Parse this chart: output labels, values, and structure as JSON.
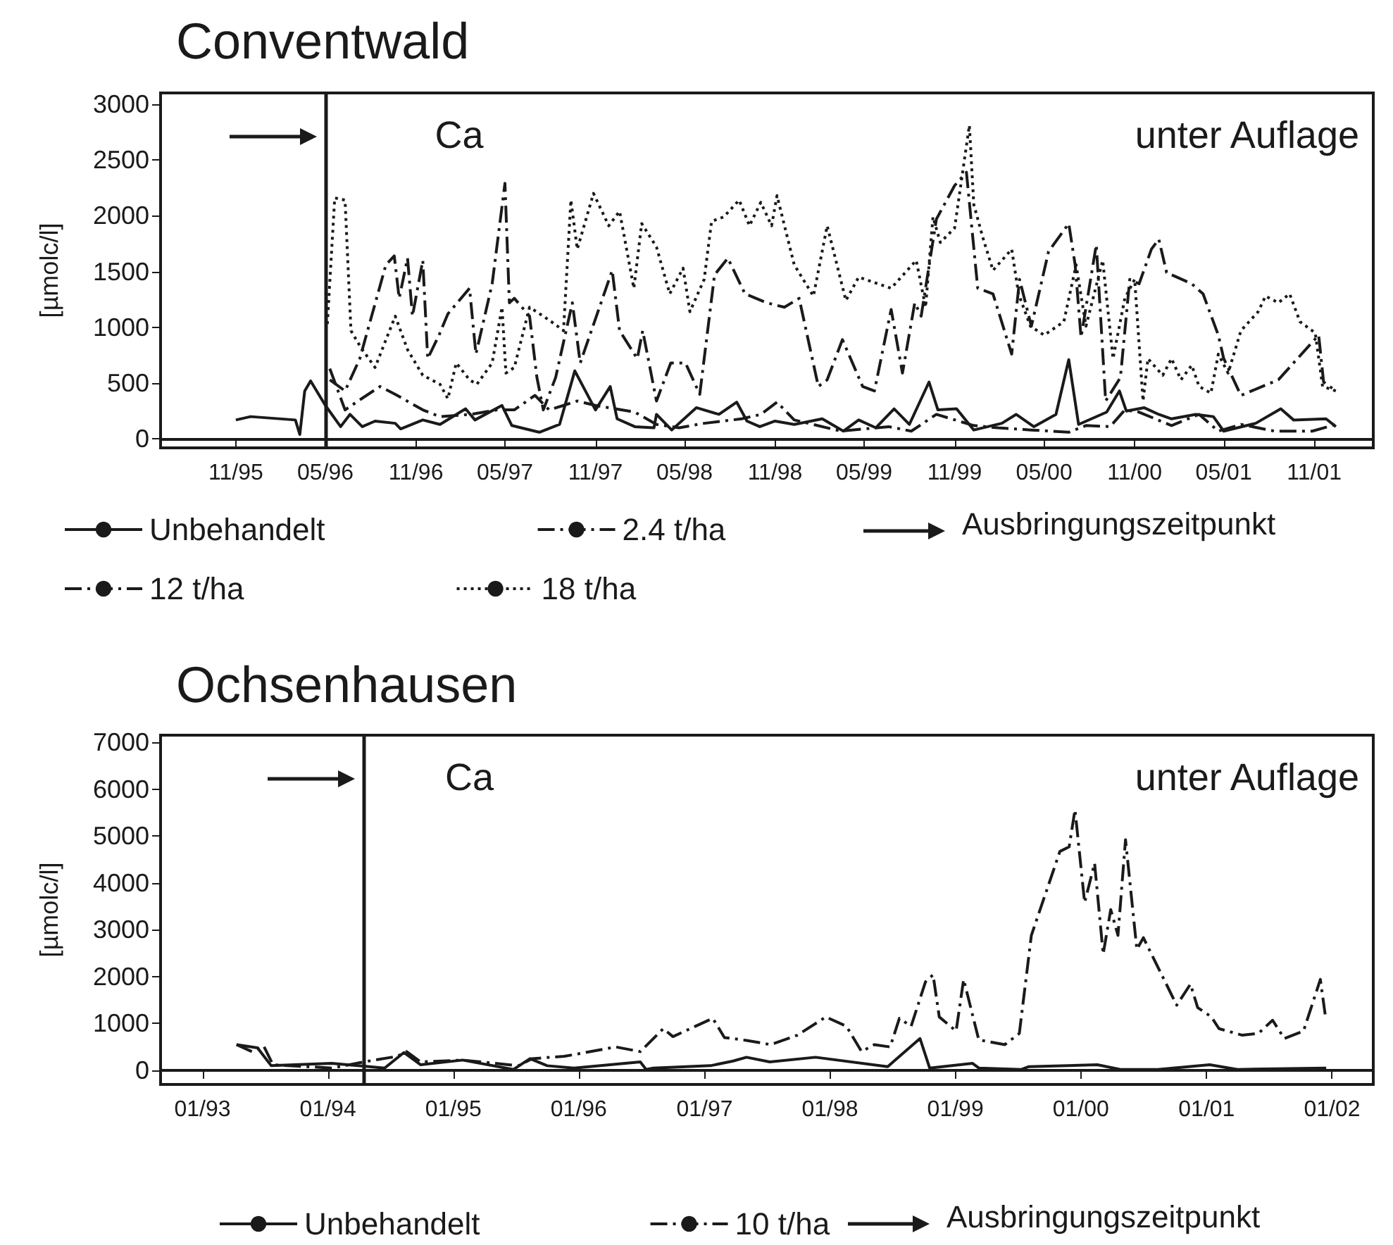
{
  "chart_data": [
    {
      "type": "line",
      "title": "Conventwald",
      "ylabel": "[µmolc/l]",
      "annotations": [
        "Ca",
        "unter Auflage"
      ],
      "legend": "bottom",
      "xlim": [
        "1995-06",
        "2002-03"
      ],
      "ylim": [
        -80,
        3100
      ],
      "yticks": [
        0,
        500,
        1000,
        1500,
        2000,
        2500,
        3000
      ],
      "xticks": [
        {
          "value": "1995-11",
          "label": "11/95"
        },
        {
          "value": "1996-05",
          "label": "05/96"
        },
        {
          "value": "1996-11",
          "label": "11/96"
        },
        {
          "value": "1997-05",
          "label": "05/97"
        },
        {
          "value": "1997-11",
          "label": "11/97"
        },
        {
          "value": "1998-05",
          "label": "05/98"
        },
        {
          "value": "1998-11",
          "label": "11/98"
        },
        {
          "value": "1999-05",
          "label": "05/99"
        },
        {
          "value": "1999-11",
          "label": "11/99"
        },
        {
          "value": "2000-05",
          "label": "05/00"
        },
        {
          "value": "2000-11",
          "label": "11/00"
        },
        {
          "value": "2001-05",
          "label": "05/01"
        },
        {
          "value": "2001-11",
          "label": "11/01"
        }
      ],
      "ref_lines": [
        {
          "axis": "x",
          "value": "1996-05",
          "label": "Ausbringungszeitpunkt",
          "color": "#1a1a1a"
        }
      ],
      "series": [
        {
          "name": "Unbehandelt",
          "color": "#1a1a1a",
          "line_style": "solid",
          "x": [
            "1995-11-01",
            "1995-12-01",
            "1996-03-01",
            "1996-03-10",
            "1996-03-20",
            "1996-04-01",
            "1996-05-01",
            "1996-06-01",
            "1996-06-20",
            "1996-07-15",
            "1996-08-10",
            "1996-09-20",
            "1996-10-01",
            "1996-11-15",
            "1996-12-20",
            "1997-02-10",
            "1997-03-01",
            "1997-04-25",
            "1997-05-15",
            "1997-07-10",
            "1997-08-20",
            "1997-09-20",
            "1997-11-01",
            "1997-12-01",
            "1997-12-15",
            "1998-01-20",
            "1998-02-28",
            "1998-03-05",
            "1998-04-05",
            "1998-05-25",
            "1998-07-10",
            "1998-08-15",
            "1998-09-05",
            "1998-10-01",
            "1998-11-01",
            "1998-12-10",
            "1999-02-05",
            "1999-03-20",
            "1999-04-20",
            "1999-05-25",
            "1999-07-01",
            "1999-08-01",
            "1999-09-10",
            "1999-09-28",
            "1999-11-05",
            "1999-12-10",
            "2000-02-05",
            "2000-03-05",
            "2000-04-10",
            "2000-05-25",
            "2000-06-20",
            "2000-07-10",
            "2000-09-05",
            "2000-10-01",
            "2000-10-15",
            "2000-11-20",
            "2000-12-20",
            "2001-01-15",
            "2001-03-05",
            "2001-04-10",
            "2001-05-01",
            "2001-07-05",
            "2001-08-25",
            "2001-09-20",
            "2001-11-25",
            "2001-12-15"
          ],
          "values": [
            170,
            200,
            170,
            40,
            430,
            520,
            300,
            110,
            220,
            110,
            160,
            140,
            90,
            170,
            130,
            270,
            170,
            300,
            120,
            60,
            130,
            610,
            260,
            470,
            180,
            110,
            100,
            220,
            80,
            280,
            220,
            330,
            160,
            110,
            160,
            130,
            180,
            70,
            170,
            100,
            270,
            130,
            510,
            260,
            270,
            80,
            140,
            220,
            110,
            220,
            710,
            130,
            240,
            430,
            250,
            280,
            220,
            180,
            220,
            200,
            70,
            140,
            270,
            170,
            180,
            110
          ]
        },
        {
          "name": "2.4 t/ha",
          "color": "#1a1a1a",
          "line_style": "dashed",
          "x": [
            "1996-05-10",
            "1996-06-10",
            "1996-07-10",
            "1996-08-20",
            "1996-09-20",
            "1996-11-15",
            "1996-12-20",
            "1997-02-20",
            "1997-04-15",
            "1997-05-20",
            "1997-07-01",
            "1997-07-30",
            "1997-08-28",
            "1997-09-25",
            "1997-11-01",
            "1998-01-20",
            "1998-03-05",
            "1998-04-20",
            "1998-06-10",
            "1998-08-25",
            "1998-10-03",
            "1998-11-05",
            "1998-12-10",
            "1999-03-15",
            "1999-06-20",
            "1999-08-05",
            "1999-09-25",
            "1999-12-10",
            "2000-01-28",
            "2000-04-05",
            "2000-06-20",
            "2000-07-25",
            "2000-09-12",
            "2000-10-12",
            "2000-11-10",
            "2001-01-15",
            "2001-03-12",
            "2001-04-20",
            "2001-06-05",
            "2001-08-12",
            "2001-10-28",
            "2001-12-15"
          ],
          "values": [
            630,
            260,
            350,
            470,
            400,
            260,
            200,
            220,
            260,
            260,
            390,
            260,
            300,
            340,
            300,
            240,
            130,
            100,
            140,
            180,
            220,
            330,
            170,
            70,
            110,
            70,
            220,
            120,
            100,
            80,
            60,
            120,
            110,
            260,
            240,
            120,
            220,
            70,
            130,
            70,
            70,
            130
          ]
        },
        {
          "name": "12 t/ha",
          "color": "#1a1a1a",
          "line_style": "dashed",
          "x": [
            "1996-05-10",
            "1996-06-10",
            "1996-07-10",
            "1996-09-01",
            "1996-09-18",
            "1996-09-28",
            "1996-10-15",
            "1996-10-25",
            "1996-11-15",
            "1996-11-25",
            "1996-12-18",
            "1997-01-05",
            "1997-02-18",
            "1997-03-03",
            "1997-04-05",
            "1997-05-01",
            "1997-05-10",
            "1997-05-20",
            "1997-06-20",
            "1997-07-05",
            "1997-07-18",
            "1997-08-12",
            "1997-09-15",
            "1997-10-01",
            "1997-12-05",
            "1997-12-20",
            "1998-01-25",
            "1998-02-05",
            "1998-03-05",
            "1998-04-03",
            "1998-05-03",
            "1998-06-01",
            "1998-07-01",
            "1998-07-28",
            "1998-09-01",
            "1998-10-15",
            "1998-11-20",
            "1998-12-20",
            "1999-01-28",
            "1999-02-15",
            "1999-03-18",
            "1999-04-28",
            "1999-05-22",
            "1999-06-25",
            "1999-07-18",
            "1999-08-12",
            "1999-08-25",
            "1999-09-25",
            "1999-11-01",
            "1999-11-25",
            "1999-12-18",
            "2000-01-18",
            "2000-02-25",
            "2000-03-12",
            "2000-04-05",
            "2000-05-10",
            "2000-06-20",
            "2000-07-03",
            "2000-07-15",
            "2000-08-15",
            "2000-09-03",
            "2000-10-03",
            "2000-10-22",
            "2000-11-10",
            "2000-12-05",
            "2000-12-20",
            "2001-01-05",
            "2001-02-25",
            "2001-03-20",
            "2001-04-20",
            "2001-05-01",
            "2001-06-05",
            "2001-08-20",
            "2001-11-10",
            "2001-11-20",
            "2001-12-15"
          ],
          "values": [
            530,
            430,
            720,
            1560,
            1640,
            1260,
            1620,
            1100,
            1600,
            720,
            930,
            1120,
            1350,
            760,
            1390,
            2290,
            1220,
            1260,
            1100,
            550,
            260,
            550,
            1220,
            680,
            1510,
            970,
            720,
            970,
            340,
            680,
            680,
            400,
            1470,
            1620,
            1300,
            1220,
            1180,
            1260,
            470,
            530,
            890,
            470,
            430,
            1160,
            590,
            1220,
            1100,
            1970,
            2270,
            2390,
            1350,
            1300,
            760,
            1430,
            1010,
            1680,
            1930,
            1560,
            910,
            1740,
            340,
            550,
            1430,
            1390,
            1700,
            1790,
            1490,
            1390,
            1300,
            930,
            720,
            390,
            530,
            930,
            510,
            430
          ]
        },
        {
          "name": "18 t/ha",
          "color": "#1a1a1a",
          "line_style": "dotted",
          "x": [
            "1996-05-05",
            "1996-05-20",
            "1996-06-10",
            "1996-06-22",
            "1996-07-12",
            "1996-08-10",
            "1996-09-20",
            "1996-10-15",
            "1996-11-15",
            "1996-12-20",
            "1997-01-05",
            "1997-01-22",
            "1997-02-18",
            "1997-03-05",
            "1997-04-05",
            "1997-04-25",
            "1997-05-03",
            "1997-05-20",
            "1997-06-20",
            "1997-07-18",
            "1997-08-10",
            "1997-08-28",
            "1997-09-12",
            "1997-09-25",
            "1997-10-28",
            "1997-11-28",
            "1997-12-20",
            "1998-01-18",
            "1998-02-03",
            "1998-03-05",
            "1998-04-01",
            "1998-04-28",
            "1998-05-12",
            "1998-06-10",
            "1998-06-25",
            "1998-07-20",
            "1998-08-20",
            "1998-09-10",
            "1998-10-03",
            "1998-10-25",
            "1998-11-05",
            "1998-12-10",
            "1999-01-18",
            "1999-02-15",
            "1999-03-25",
            "1999-04-20",
            "1999-06-25",
            "1999-08-15",
            "1999-09-03",
            "1999-09-18",
            "1999-10-03",
            "1999-11-01",
            "1999-12-01",
            "1999-12-10",
            "1999-12-28",
            "2000-01-18",
            "2000-02-25",
            "2000-03-10",
            "2000-04-03",
            "2000-05-01",
            "2000-06-10",
            "2000-07-05",
            "2000-07-25",
            "2000-08-28",
            "2000-09-18",
            "2000-10-12",
            "2000-11-01",
            "2000-11-18",
            "2000-11-28",
            "2000-12-28",
            "2001-01-15",
            "2001-02-03",
            "2001-02-25",
            "2001-03-12",
            "2001-04-05",
            "2001-04-20",
            "2001-05-10",
            "2001-06-05",
            "2001-07-10",
            "2001-07-25",
            "2001-08-20",
            "2001-09-12",
            "2001-10-03",
            "2001-11-03",
            "2001-11-18",
            "2001-12-15"
          ],
          "values": [
            1030,
            2160,
            2140,
            970,
            820,
            640,
            1100,
            800,
            570,
            490,
            360,
            680,
            530,
            490,
            680,
            1180,
            590,
            640,
            1180,
            1100,
            1030,
            970,
            2140,
            1700,
            2200,
            1910,
            2040,
            1350,
            1930,
            1720,
            1300,
            1530,
            1140,
            1430,
            1950,
            1990,
            2140,
            1910,
            2120,
            1910,
            2180,
            1560,
            1280,
            1910,
            1240,
            1450,
            1350,
            1600,
            1180,
            1990,
            1760,
            1890,
            2810,
            2100,
            1810,
            1510,
            1700,
            1300,
            1010,
            930,
            1050,
            1560,
            1010,
            1600,
            720,
            1260,
            1430,
            340,
            720,
            570,
            720,
            530,
            660,
            470,
            410,
            760,
            590,
            970,
            1140,
            1280,
            1220,
            1300,
            1050,
            950,
            470,
            430
          ]
        }
      ]
    },
    {
      "type": "line",
      "title": "Ochsenhausen",
      "ylabel": "[µmolc/l]",
      "annotations": [
        "Ca",
        "unter Auflage"
      ],
      "legend": "bottom",
      "xlim": [
        "1992-09",
        "2002-05"
      ],
      "ylim": [
        -300,
        7150
      ],
      "yticks": [
        0,
        1000,
        2000,
        3000,
        4000,
        5000,
        6000,
        7000
      ],
      "xticks": [
        {
          "value": "1993-01",
          "label": "01/93"
        },
        {
          "value": "1994-01",
          "label": "01/94"
        },
        {
          "value": "1995-01",
          "label": "01/95"
        },
        {
          "value": "1996-01",
          "label": "01/96"
        },
        {
          "value": "1997-01",
          "label": "01/97"
        },
        {
          "value": "1998-01",
          "label": "01/98"
        },
        {
          "value": "1999-01",
          "label": "01/99"
        },
        {
          "value": "2000-01",
          "label": "01/00"
        },
        {
          "value": "2001-01",
          "label": "01/01"
        },
        {
          "value": "2002-01",
          "label": "01/02"
        }
      ],
      "ref_lines": [
        {
          "axis": "x",
          "value": "1994-04-15",
          "label": "Ausbringungszeitpunkt",
          "color": "#1a1a1a"
        }
      ],
      "series": [
        {
          "name": "Unbehandelt",
          "color": "#1a1a1a",
          "line_style": "solid",
          "x": [
            "1993-04-10",
            "1993-06-10",
            "1993-07-20",
            "1994-01-12",
            "1994-06-15",
            "1994-08-10",
            "1994-09-28",
            "1995-01-28",
            "1995-06-25",
            "1995-08-12",
            "1995-10-01",
            "1995-12-18",
            "1996-06-28",
            "1996-07-15",
            "1996-08-05",
            "1997-01-18",
            "1997-03-25",
            "1997-05-03",
            "1997-07-10",
            "1997-11-20",
            "1998-06-18",
            "1998-09-20",
            "1998-10-18",
            "1999-02-20",
            "1999-03-10",
            "1999-07-12",
            "1999-08-03",
            "2000-02-18",
            "2000-04-25",
            "2000-08-12",
            "2001-01-10",
            "2001-04-01",
            "2001-12-15"
          ],
          "values": [
            550,
            480,
            100,
            150,
            50,
            380,
            120,
            220,
            20,
            250,
            100,
            50,
            180,
            20,
            50,
            100,
            200,
            280,
            180,
            280,
            80,
            680,
            50,
            150,
            50,
            20,
            80,
            120,
            20,
            20,
            120,
            20,
            50
          ]
        },
        {
          "name": "10 t/ha",
          "color": "#1a1a1a",
          "line_style": "dashed",
          "x": [
            "1993-04-10",
            "1993-05-25",
            "1993-06-28",
            "1993-07-25",
            "1994-01-12",
            "1994-04-15",
            "1994-07-22",
            "1994-08-18",
            "1994-09-28",
            "1995-01-28",
            "1995-07-10",
            "1995-08-18",
            "1995-11-20",
            "1996-04-18",
            "1996-06-28",
            "1996-09-03",
            "1996-10-01",
            "1996-12-20",
            "1997-01-25",
            "1997-02-28",
            "1997-05-03",
            "1997-07-12",
            "1997-09-28",
            "1997-12-20",
            "1998-02-18",
            "1998-04-03",
            "1998-05-10",
            "1998-06-25",
            "1998-07-22",
            "1998-08-25",
            "1998-10-06",
            "1998-10-28",
            "1998-11-15",
            "1999-01-03",
            "1999-01-25",
            "1999-03-10",
            "1999-05-25",
            "1999-07-06",
            "1999-08-10",
            "1999-11-01",
            "1999-11-28",
            "1999-12-15",
            "2000-01-12",
            "2000-02-10",
            "2000-03-06",
            "2000-03-28",
            "2000-04-18",
            "2000-05-10",
            "2000-06-12",
            "2000-07-01",
            "2000-10-06",
            "2000-11-15",
            "2000-12-06",
            "2001-01-15",
            "2001-02-06",
            "2001-04-15",
            "2001-06-01",
            "2001-07-12",
            "2001-08-15",
            "2001-10-10",
            "2001-11-28",
            "2001-12-12"
          ],
          "values": [
            550,
            400,
            520,
            120,
            50,
            180,
            300,
            400,
            180,
            220,
            100,
            250,
            300,
            500,
            400,
            890,
            720,
            990,
            1110,
            700,
            640,
            550,
            750,
            1140,
            940,
            400,
            550,
            500,
            1110,
            940,
            1890,
            2040,
            1140,
            840,
            1940,
            650,
            550,
            790,
            2880,
            4670,
            4770,
            5560,
            3580,
            4420,
            2480,
            3430,
            2880,
            4920,
            2580,
            2830,
            1390,
            1840,
            1340,
            1140,
            890,
            750,
            790,
            1070,
            680,
            840,
            1940,
            1190
          ]
        }
      ]
    }
  ]
}
